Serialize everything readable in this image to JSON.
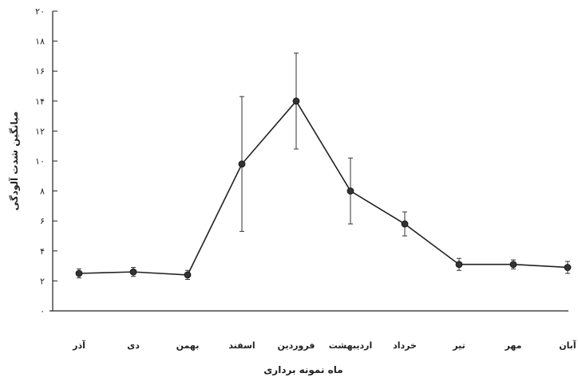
{
  "chart_data": {
    "type": "line",
    "categories": [
      "آذر",
      "دی",
      "بهمن",
      "اسفند",
      "فروردین",
      "اردیبهشت",
      "خرداد",
      "تیر",
      "مهر",
      "آبان"
    ],
    "values": [
      2.5,
      2.6,
      2.4,
      9.8,
      14.0,
      8.0,
      5.8,
      3.1,
      3.1,
      2.9
    ],
    "error": [
      0.3,
      0.3,
      0.3,
      4.5,
      3.2,
      2.2,
      0.8,
      0.4,
      0.3,
      0.4
    ],
    "xlabel": "ماه نمونه برداری",
    "ylabel": "میانگین شدت آلودگی",
    "ylim": [
      0,
      20
    ],
    "yticks": [
      {
        "value": 0,
        "label": "۰"
      },
      {
        "value": 2,
        "label": "۲"
      },
      {
        "value": 4,
        "label": "۴"
      },
      {
        "value": 6,
        "label": "۶"
      },
      {
        "value": 8,
        "label": "۸"
      },
      {
        "value": 10,
        "label": "۱۰"
      },
      {
        "value": 12,
        "label": "۱۲"
      },
      {
        "value": 14,
        "label": "۱۴"
      },
      {
        "value": 16,
        "label": "۱۶"
      },
      {
        "value": 18,
        "label": "۱۸"
      },
      {
        "value": 20,
        "label": "۲۰"
      }
    ],
    "grid": false,
    "legend": "none",
    "line_color": "#222222",
    "marker_color": "#333333"
  }
}
